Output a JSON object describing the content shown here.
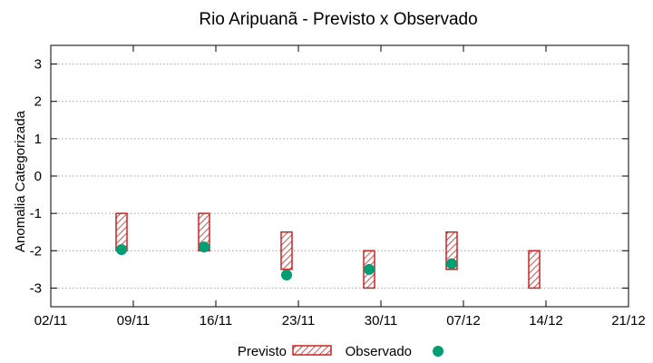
{
  "chart_data": {
    "type": "bar",
    "title": "Rio Aripuanã - Previsto x Observado",
    "ylabel": "Anomalia Categorizada",
    "xlabel": "",
    "ylim": [
      -3.5,
      3.5
    ],
    "yticks": [
      3,
      2,
      1,
      0,
      -1,
      -2,
      -3
    ],
    "xlim": [
      "2023-11-02",
      "2023-12-21"
    ],
    "xticks": [
      "02/11",
      "09/11",
      "16/11",
      "23/11",
      "30/11",
      "07/12",
      "14/12",
      "21/12"
    ],
    "grid": "horizontal",
    "legend": "bottom-center",
    "series": [
      {
        "name": "Previsto",
        "style": "hatched-box",
        "color": "#cc2222",
        "points": [
          {
            "x": "2023-11-08",
            "low": -2,
            "high": -1
          },
          {
            "x": "2023-11-15",
            "low": -2,
            "high": -1
          },
          {
            "x": "2023-11-22",
            "low": -2.5,
            "high": -1.5
          },
          {
            "x": "2023-11-29",
            "low": -3,
            "high": -2
          },
          {
            "x": "2023-12-06",
            "low": -2.5,
            "high": -1.5
          },
          {
            "x": "2023-12-13",
            "low": -3,
            "high": -2
          }
        ]
      },
      {
        "name": "Observado",
        "style": "point",
        "color": "#009e73",
        "points": [
          {
            "x": "2023-11-08",
            "y": -1.97
          },
          {
            "x": "2023-11-15",
            "y": -1.9
          },
          {
            "x": "2023-11-22",
            "y": -2.65
          },
          {
            "x": "2023-11-29",
            "y": -2.5
          },
          {
            "x": "2023-12-06",
            "y": -2.35
          }
        ]
      }
    ]
  }
}
